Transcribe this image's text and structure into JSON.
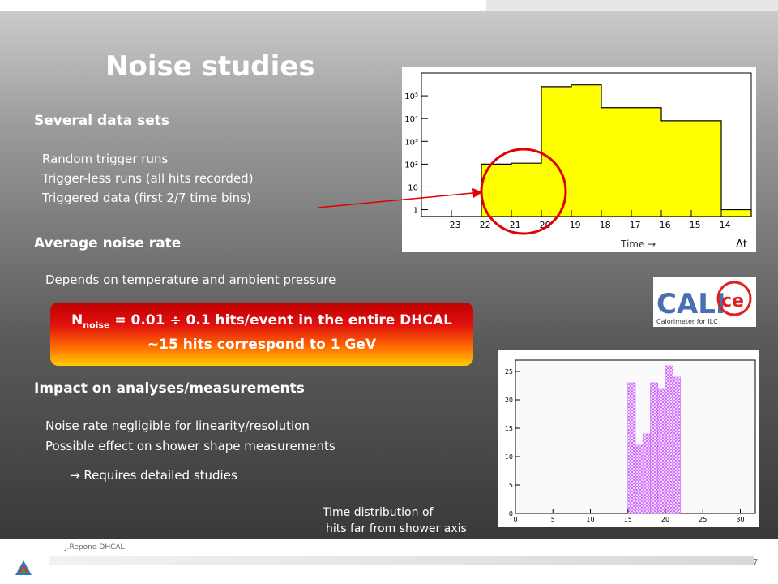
{
  "slide": {
    "title": "Noise studies",
    "section1": {
      "heading": "Several data sets",
      "items": [
        "Random trigger runs",
        "Trigger-less runs (all hits recorded)",
        "Triggered data (first 2/7 time bins)"
      ]
    },
    "section2": {
      "heading": "Average noise rate",
      "text": "Depends on temperature and ambient pressure"
    },
    "highlight": {
      "line1_prefix": "N",
      "line1_sub": "noise",
      "line1_rest": " = 0.01 ÷ 0.1 hits/event in the entire DHCAL",
      "line2": "~15 hits correspond to 1 GeV"
    },
    "section3": {
      "heading": "Impact on analyses/measurements",
      "items": [
        "Noise rate negligible for linearity/resolution",
        "Possible effect on shower shape measurements"
      ],
      "arrow_text": "→ Requires detailed studies"
    },
    "caption": {
      "line1": "Time distribution of",
      "line2": "hits far from shower axis"
    },
    "logo": {
      "name": "CALICE",
      "tagline": "Calorimeter for ILC"
    },
    "footer": {
      "author": "J.Repond DHCAL",
      "page": "7"
    }
  },
  "colors": {
    "highlight_top": "#c00000",
    "highlight_bottom": "#ffcc00",
    "histogram_fill": "#ffff00",
    "circle": "#e00000",
    "hatch": "#cc66ff"
  },
  "chart_data": [
    {
      "type": "bar",
      "scale": "log",
      "x_axis_label": "Δt",
      "annotation": "Time →",
      "x_ticks": [
        "−23",
        "−22",
        "−21",
        "−20",
        "−19",
        "−18",
        "−17",
        "−16",
        "−15",
        "−14"
      ],
      "y_ticks": [
        "1",
        "10",
        "10²",
        "10³",
        "10⁴",
        "10⁵"
      ],
      "bins": [
        {
          "from": -24,
          "to": -22,
          "value": 0
        },
        {
          "from": -22,
          "to": -21,
          "value": 100
        },
        {
          "from": -21,
          "to": -20,
          "value": 110
        },
        {
          "from": -20,
          "to": -19,
          "value": 250000
        },
        {
          "from": -19,
          "to": -18,
          "value": 300000
        },
        {
          "from": -18,
          "to": -17,
          "value": 30000
        },
        {
          "from": -17,
          "to": -16,
          "value": 30000
        },
        {
          "from": -16,
          "to": -15,
          "value": 8000
        },
        {
          "from": -15,
          "to": -14,
          "value": 8000
        },
        {
          "from": -14,
          "to": -13,
          "value": 1
        }
      ],
      "xlim": [
        -24,
        -13
      ],
      "ylim": [
        0.5,
        1000000
      ]
    },
    {
      "type": "bar",
      "x_ticks": [
        "0",
        "5",
        "10",
        "15",
        "20",
        "25",
        "30"
      ],
      "y_ticks": [
        "0",
        "5",
        "10",
        "15",
        "20",
        "25"
      ],
      "bins": [
        {
          "from": 15,
          "to": 16,
          "value": 23
        },
        {
          "from": 16,
          "to": 17,
          "value": 12
        },
        {
          "from": 17,
          "to": 18,
          "value": 14
        },
        {
          "from": 18,
          "to": 19,
          "value": 23
        },
        {
          "from": 19,
          "to": 20,
          "value": 22
        },
        {
          "from": 20,
          "to": 21,
          "value": 26
        },
        {
          "from": 21,
          "to": 22,
          "value": 24
        }
      ],
      "xlim": [
        0,
        32
      ],
      "ylim": [
        0,
        27
      ]
    }
  ]
}
